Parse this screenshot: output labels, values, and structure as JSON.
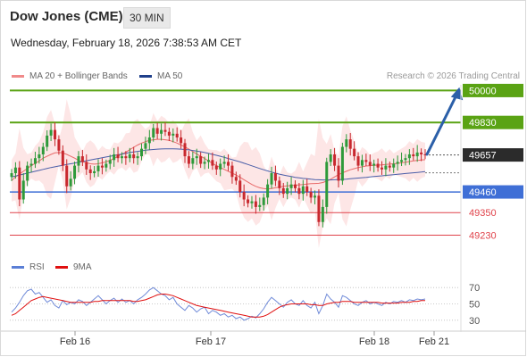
{
  "header": {
    "title": "Dow Jones (CME)",
    "timeframe": "30 MIN",
    "datetime": "Wednesday, February 18, 2026 7:38:53 AM CET"
  },
  "legend": {
    "ma20_label": "MA 20 + Bollinger Bands",
    "ma50_label": "MA 50",
    "rsi_label": "RSI",
    "rsi9_label": "9MA"
  },
  "credit": "Research © 2026 Trading Central",
  "colors": {
    "up_candle": "#2e9a3a",
    "down_candle": "#c8282e",
    "ma20": "#e86a6a",
    "ma50": "#4a5ea8",
    "band_fill": "#fde3e3",
    "resistance": "#5aa314",
    "support": "#3f6fd6",
    "support_sub": "#e0424a",
    "last_price": "#2b2b2b",
    "arrow": "#2b5fa8",
    "rsi_line": "#6f8ad8",
    "rsi_ma": "#e01010"
  },
  "chart_data": [
    {
      "type": "candlestick",
      "x_tick_labels": [
        "Feb 16",
        "Feb 17",
        "Feb 18",
        "Feb 21"
      ],
      "ylim": [
        49180,
        50040
      ],
      "levels": [
        {
          "label": "50000",
          "value": 50000,
          "kind": "resistance"
        },
        {
          "label": "49830",
          "value": 49830,
          "kind": "resistance"
        },
        {
          "label": "49657",
          "value": 49657,
          "kind": "last"
        },
        {
          "label": "49460",
          "value": 49460,
          "kind": "support"
        },
        {
          "label": "49350",
          "value": 49350,
          "kind": "support-sub"
        },
        {
          "label": "49230",
          "value": 49230,
          "kind": "support-sub"
        }
      ],
      "close": [
        49560,
        49590,
        49420,
        49520,
        49600,
        49610,
        49640,
        49660,
        49700,
        49760,
        49790,
        49740,
        49680,
        49600,
        49490,
        49530,
        49600,
        49650,
        49620,
        49580,
        49560,
        49570,
        49600,
        49590,
        49610,
        49630,
        49660,
        49640,
        49650,
        49640,
        49660,
        49640,
        49650,
        49690,
        49720,
        49750,
        49800,
        49770,
        49790,
        49780,
        49760,
        49770,
        49750,
        49720,
        49650,
        49610,
        49640,
        49650,
        49610,
        49620,
        49630,
        49600,
        49580,
        49610,
        49620,
        49600,
        49540,
        49520,
        49460,
        49420,
        49400,
        49410,
        49380,
        49390,
        49430,
        49500,
        49560,
        49520,
        49480,
        49450,
        49480,
        49500,
        49480,
        49450,
        49490,
        49460,
        49430,
        49440,
        49300,
        49380,
        49620,
        49660,
        49600,
        49520,
        49700,
        49740,
        49690,
        49650,
        49600,
        49630,
        49620,
        49600,
        49610,
        49590,
        49580,
        49600,
        49590,
        49610,
        49620,
        49630,
        49640,
        49660,
        49650,
        49670,
        49660,
        49657
      ],
      "series": [
        {
          "name": "MA 20 + Bollinger Bands",
          "values": [
            49520,
            49540,
            49555,
            49570,
            49585,
            49600,
            49612,
            49625,
            49640,
            49650,
            49660,
            49668,
            49670,
            49668,
            49660,
            49650,
            49640,
            49628,
            49620,
            49615,
            49610,
            49608,
            49610,
            49615,
            49620,
            49628,
            49638,
            49650,
            49662,
            49672,
            49685,
            49698,
            49710,
            49720,
            49728,
            49735,
            49738,
            49740,
            49740,
            49738,
            49735,
            49728,
            49720,
            49710,
            49700,
            49688,
            49675,
            49662,
            49650,
            49638,
            49625,
            49612,
            49600,
            49590,
            49580,
            49570,
            49560,
            49550,
            49538,
            49525,
            49512,
            49500,
            49490,
            49482,
            49478,
            49476,
            49478,
            49482,
            49486,
            49490,
            49492,
            49494,
            49496,
            49498,
            49500,
            49502,
            49504,
            49505,
            49506,
            49510,
            49518,
            49528,
            49540,
            49552,
            49562,
            49570,
            49578,
            49584,
            49590,
            49594,
            49598,
            49600,
            49602,
            49603,
            49604,
            49606,
            49608,
            49610,
            49612,
            49615,
            49618,
            49622,
            49625,
            49628,
            49630,
            49632
          ]
        },
        {
          "name": "MA 50",
          "values": [
            49540,
            49545,
            49550,
            49555,
            49560,
            49565,
            49570,
            49575,
            49580,
            49585,
            49590,
            49594,
            49598,
            49602,
            49606,
            49610,
            49614,
            49618,
            49622,
            49626,
            49630,
            49634,
            49638,
            49642,
            49646,
            49650,
            49654,
            49658,
            49662,
            49666,
            49670,
            49673,
            49676,
            49679,
            49682,
            49684,
            49686,
            49688,
            49689,
            49690,
            49690,
            49690,
            49689,
            49688,
            49686,
            49684,
            49681,
            49678,
            49674,
            49670,
            49665,
            49660,
            49655,
            49650,
            49644,
            49638,
            49632,
            49626,
            49620,
            49613,
            49606,
            49599,
            49592,
            49585,
            49578,
            49572,
            49566,
            49560,
            49555,
            49550,
            49546,
            49542,
            49538,
            49535,
            49532,
            49530,
            49528,
            49526,
            49525,
            49524,
            49524,
            49524,
            49525,
            49526,
            49527,
            49528,
            49530,
            49532,
            49534,
            49536,
            49538,
            49540,
            49542,
            49544,
            49546,
            49548,
            49550,
            49552,
            49554,
            49556,
            49558,
            49560,
            49562,
            49564,
            49566,
            49568
          ]
        }
      ]
    },
    {
      "type": "line",
      "x_tick_labels": [
        "Feb 16",
        "Feb 17",
        "Feb 18",
        "Feb 21"
      ],
      "y_tick_labels": [
        "70",
        "50",
        "30"
      ],
      "ylim": [
        20,
        80
      ],
      "series": [
        {
          "name": "RSI",
          "values": [
            40,
            45,
            52,
            60,
            66,
            68,
            62,
            64,
            58,
            52,
            55,
            48,
            45,
            54,
            49,
            52,
            50,
            55,
            53,
            48,
            52,
            56,
            60,
            55,
            50,
            54,
            57,
            52,
            56,
            52,
            54,
            50,
            55,
            58,
            62,
            67,
            70,
            66,
            62,
            60,
            55,
            58,
            50,
            46,
            42,
            48,
            45,
            40,
            44,
            46,
            38,
            42,
            40,
            36,
            38,
            34,
            36,
            32,
            34,
            30,
            32,
            35,
            33,
            38,
            44,
            52,
            58,
            54,
            50,
            46,
            52,
            55,
            50,
            48,
            54,
            48,
            45,
            52,
            38,
            48,
            62,
            56,
            52,
            46,
            60,
            58,
            54,
            50,
            48,
            52,
            54,
            50,
            52,
            50,
            48,
            52,
            50,
            53,
            52,
            54,
            52,
            55,
            54,
            56,
            55,
            56
          ]
        },
        {
          "name": "9MA",
          "values": [
            36,
            38,
            42,
            46,
            50,
            54,
            56,
            58,
            59,
            58,
            57,
            56,
            55,
            54,
            53,
            52,
            52,
            52,
            52,
            52,
            52,
            53,
            53,
            54,
            54,
            54,
            54,
            54,
            54,
            54,
            54,
            53,
            53,
            54,
            55,
            57,
            59,
            61,
            62,
            62,
            61,
            60,
            58,
            56,
            54,
            52,
            50,
            48,
            47,
            46,
            45,
            44,
            43,
            42,
            41,
            40,
            39,
            38,
            37,
            36,
            35,
            34,
            34,
            34,
            35,
            37,
            40,
            43,
            46,
            48,
            49,
            50,
            50,
            50,
            50,
            50,
            49,
            49,
            48,
            48,
            50,
            51,
            52,
            52,
            53,
            53,
            53,
            52,
            52,
            52,
            52,
            52,
            52,
            52,
            51,
            51,
            51,
            51,
            51,
            52,
            52,
            52,
            53,
            53,
            54,
            54
          ]
        }
      ]
    }
  ]
}
